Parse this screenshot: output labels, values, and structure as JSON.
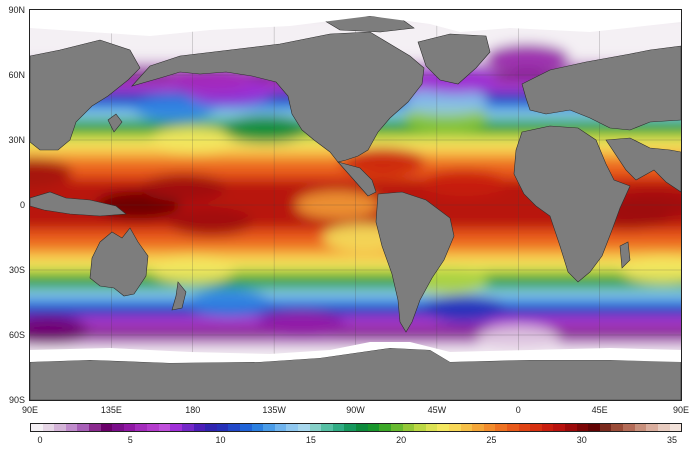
{
  "map": {
    "title": "",
    "projection": "plate carree, centered on 180",
    "background_color": "#7d7d7d",
    "land_color": "#7d7d7d",
    "ice_color": "#ffffff",
    "lat_labels": [
      "90N",
      "60N",
      "30N",
      "0",
      "30S",
      "60S",
      "90S"
    ],
    "lon_labels": [
      "90E",
      "135E",
      "180",
      "135W",
      "90W",
      "45W",
      "0",
      "45E",
      "90E"
    ]
  },
  "colorbar": {
    "tick_labels": [
      "0",
      "5",
      "10",
      "15",
      "20",
      "25",
      "30",
      "35"
    ],
    "min": 0,
    "max": 35,
    "colors": [
      "#f4f0f4",
      "#e6d6e6",
      "#d4b4d8",
      "#c08ccc",
      "#a860b8",
      "#8a2a8e",
      "#6a006a",
      "#7a0e8a",
      "#9018a4",
      "#a42cbc",
      "#b43ccc",
      "#c050dc",
      "#a030d8",
      "#7428c8",
      "#4c1eb8",
      "#3024b0",
      "#2630b8",
      "#2248c8",
      "#2064d8",
      "#2c80e0",
      "#4a9ce8",
      "#70b4ee",
      "#90c8f0",
      "#a8d8ee",
      "#86d0c8",
      "#56c0a4",
      "#30ac84",
      "#16985e",
      "#0c8a3c",
      "#18962c",
      "#3ca828",
      "#68ba30",
      "#94c838",
      "#bcd844",
      "#dce254",
      "#f4e860",
      "#f8d858",
      "#f6c048",
      "#f4a638",
      "#f28c2c",
      "#ee7222",
      "#e85a1a",
      "#e04414",
      "#d63010",
      "#c81e0e",
      "#b8120e",
      "#9c0a0a",
      "#7c0606",
      "#620404",
      "#7a2a1e",
      "#9a4c38",
      "#b46c58",
      "#c8907c",
      "#daae9e",
      "#e8ccc0",
      "#f2e2da"
    ]
  },
  "sst_regions": [
    {
      "lat": 0,
      "lon": 150,
      "value": 30
    },
    {
      "lat": 8,
      "lon": 175,
      "value": 29
    },
    {
      "lat": -8,
      "lon": 190,
      "value": 29
    },
    {
      "lat": 0,
      "lon": 75,
      "value": 29
    },
    {
      "lat": -5,
      "lon": 60,
      "value": 29
    },
    {
      "lat": 15,
      "lon": 90,
      "value": 29
    },
    {
      "lat": 10,
      "lon": 330,
      "value": 28
    },
    {
      "lat": 20,
      "lon": 285,
      "value": 28
    },
    {
      "lat": 0,
      "lon": 260,
      "value": 24
    },
    {
      "lat": -15,
      "lon": 275,
      "value": 22
    },
    {
      "lat": 30,
      "lon": 180,
      "value": 22
    },
    {
      "lat": 35,
      "lon": 220,
      "value": 18
    },
    {
      "lat": 40,
      "lon": 320,
      "value": 20
    },
    {
      "lat": 45,
      "lon": 170,
      "value": 12
    },
    {
      "lat": 52,
      "lon": 200,
      "value": 8
    },
    {
      "lat": 58,
      "lon": 190,
      "value": 6
    },
    {
      "lat": 48,
      "lon": 320,
      "value": 14
    },
    {
      "lat": 58,
      "lon": 325,
      "value": 8
    },
    {
      "lat": 68,
      "lon": 5,
      "value": 5
    },
    {
      "lat": -30,
      "lon": 180,
      "value": 22
    },
    {
      "lat": -35,
      "lon": 320,
      "value": 21
    },
    {
      "lat": -30,
      "lon": 80,
      "value": 22
    },
    {
      "lat": -45,
      "lon": 200,
      "value": 12
    },
    {
      "lat": -48,
      "lon": 330,
      "value": 10
    },
    {
      "lat": -55,
      "lon": 240,
      "value": 5
    },
    {
      "lat": -58,
      "lon": 100,
      "value": 4
    },
    {
      "lat": -62,
      "lon": 0,
      "value": 1
    }
  ]
}
